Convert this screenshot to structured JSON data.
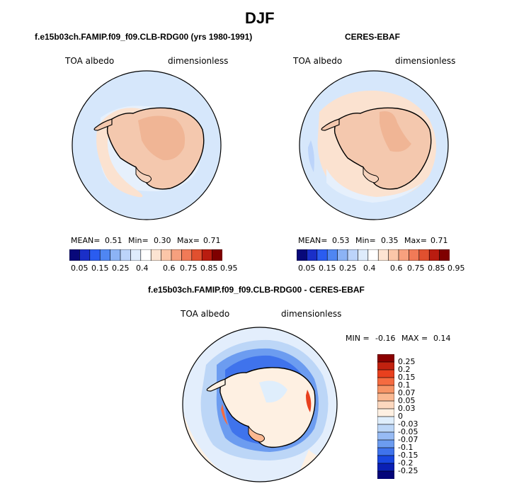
{
  "figure": {
    "season": "DJF"
  },
  "panels": [
    {
      "title": "f.e15b03ch.FAMIP.f09_f09.CLB-RDG00 (yrs 1980-1991)",
      "variable": "TOA albedo",
      "units": "dimensionless",
      "mean_label": "MEAN=",
      "mean": "0.51",
      "min_label": "Min=",
      "min": "0.30",
      "max_label": "Max=",
      "max": "0.71"
    },
    {
      "title": "CERES-EBAF",
      "variable": "TOA albedo",
      "units": "dimensionless",
      "mean_label": "MEAN=",
      "mean": "0.53",
      "min_label": "Min=",
      "min": "0.35",
      "max_label": "Max=",
      "max": "0.71"
    }
  ],
  "abs_colorbar": {
    "ticks": [
      "0.05",
      "0.15",
      "0.25",
      "0.4",
      "0.6",
      "0.75",
      "0.85",
      "0.95"
    ],
    "colors": [
      "#08087a",
      "#1a2fc8",
      "#2a5cf0",
      "#4f86f2",
      "#8cb3f5",
      "#bcd4fa",
      "#deecfc",
      "#ffffff",
      "#fde4d2",
      "#fbc6a8",
      "#f7a07e",
      "#f17a57",
      "#e1502f",
      "#b91c10",
      "#7f0000"
    ]
  },
  "diff_panel": {
    "title": "f.e15b03ch.FAMIP.f09_f09.CLB-RDG00 - CERES-EBAF",
    "variable": "TOA albedo",
    "units": "dimensionless",
    "min_label": "MIN =",
    "min": "-0.16",
    "max_label": "MAX =",
    "max": "0.14"
  },
  "diff_colorbar": {
    "ticks": [
      "0.25",
      "0.2",
      "0.15",
      "0.1",
      "0.07",
      "0.05",
      "0.03",
      "0",
      "-0.03",
      "-0.05",
      "-0.07",
      "-0.1",
      "-0.15",
      "-0.2",
      "-0.25"
    ],
    "colors": [
      "#8b0000",
      "#c1210f",
      "#e8401e",
      "#f56b40",
      "#f79466",
      "#fab891",
      "#fcd8bf",
      "#fef0e2",
      "#dfeefc",
      "#bcd6f7",
      "#97bbf4",
      "#6c9cf0",
      "#3f73ec",
      "#1947e0",
      "#0a20b4",
      "#04047a"
    ]
  },
  "colors": {
    "ocean_light": "#d6e7fb",
    "land_pale": "#f6d3bd",
    "land_mid": "#f0b595",
    "land_dark": "#e8a080",
    "cloud_pale": "#fde5d2",
    "blue_mid": "#8cb3f5",
    "blue_dark": "#3064e6"
  }
}
